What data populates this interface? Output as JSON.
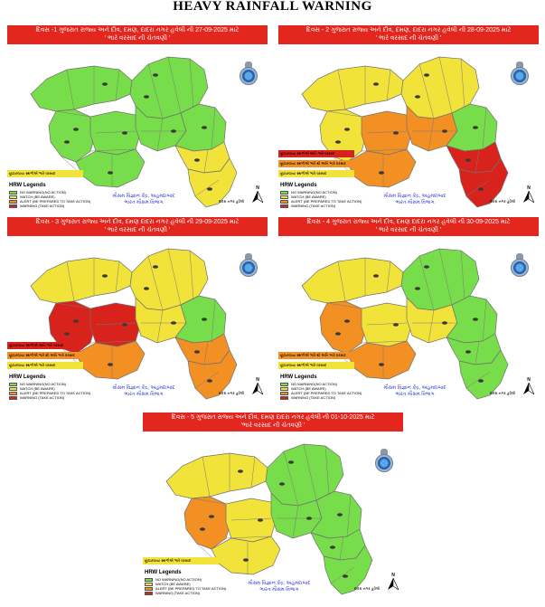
{
  "title": "HEAVY RAINFALL WARNING",
  "colors": {
    "no_warning": "#77dd4a",
    "watch": "#f2e33a",
    "alert": "#f29024",
    "warning": "#d8231c",
    "banner": "#e4271e",
    "imd_text": "#2e3bd3"
  },
  "panels": [
    {
      "day_line": "દિવસ -1 ગુજરાત રાજ્ય અને દીવ, દમણ, દાદરા નગર હવેલી ની 27-09-2025 માટે",
      "subtitle": "' ભારે વરસાદ ની ચેતવણી '",
      "regions": [
        {
          "zone": "Kutch",
          "level": "no_warning"
        },
        {
          "zone": "North Gujarat",
          "level": "no_warning"
        },
        {
          "zone": "Saurashtra West",
          "level": "no_warning"
        },
        {
          "zone": "Saurashtra Central",
          "level": "no_warning"
        },
        {
          "zone": "Saurashtra South",
          "level": "no_warning"
        },
        {
          "zone": "Central Gujarat",
          "level": "no_warning"
        },
        {
          "zone": "East Gujarat",
          "level": "no_warning"
        },
        {
          "zone": "South Gujarat Upper",
          "level": "watch"
        },
        {
          "zone": "South Gujarat Lower",
          "level": "watch"
        }
      ],
      "notes": [
        {
          "text": "છૂટાછવાયા સ્થળોએ ભારે વરસાદ",
          "level": "watch"
        }
      ],
      "imd_line1": "મૌસમ વિજ્ઞાન કેંદ્ર, અહમદાબાદ",
      "imd_line2": "ભારત મૌસમ વિભાગ",
      "island_label": "દાદરા નગર હવેલી"
    },
    {
      "day_line": "દિવસ - 2 ગુજરાત રાજ્ય અને દીવ, દમણ, દાદરા નગર હવેલી ની 28-09-2025 માટે",
      "subtitle": "' ભારે વરસાદ ની ચેતવણી '",
      "regions": [
        {
          "zone": "Kutch",
          "level": "watch"
        },
        {
          "zone": "North Gujarat",
          "level": "watch"
        },
        {
          "zone": "Saurashtra West",
          "level": "watch"
        },
        {
          "zone": "Saurashtra Central",
          "level": "alert"
        },
        {
          "zone": "Saurashtra South",
          "level": "alert"
        },
        {
          "zone": "Central Gujarat",
          "level": "alert"
        },
        {
          "zone": "East Gujarat",
          "level": "no_warning"
        },
        {
          "zone": "South Gujarat Upper",
          "level": "warning"
        },
        {
          "zone": "South Gujarat Lower",
          "level": "warning"
        }
      ],
      "notes": [
        {
          "text": "છૂટાછવાયા સ્થળોએ અતિ ભારે વરસાદ",
          "level": "warning"
        },
        {
          "text": "છૂટાછવાયા સ્થળોએ ભારે થી અતિ ભારે વરસાદ",
          "level": "alert"
        },
        {
          "text": "છૂટાછવાયા સ્થળોએ ભારે વરસાદ",
          "level": "watch"
        }
      ],
      "imd_line1": "મૌસમ વિજ્ઞાન કેંદ્ર, અહમદાબાદ",
      "imd_line2": "ભારત મૌસમ વિભાગ",
      "island_label": "દાદરા નગર હવેલી"
    },
    {
      "day_line": "દિવસ - 3 ગુજરાત રાજ્ય અને દીવ, દમણ દાદરા નગર હવેલી ની 29-09-2025 માટે",
      "subtitle": "' ભારે વરસાદ ની ચેતવણી '",
      "regions": [
        {
          "zone": "Kutch",
          "level": "watch"
        },
        {
          "zone": "North Gujarat",
          "level": "watch"
        },
        {
          "zone": "Saurashtra West",
          "level": "warning"
        },
        {
          "zone": "Saurashtra Central",
          "level": "warning"
        },
        {
          "zone": "Saurashtra South",
          "level": "alert"
        },
        {
          "zone": "Central Gujarat",
          "level": "watch"
        },
        {
          "zone": "East Gujarat",
          "level": "no_warning"
        },
        {
          "zone": "South Gujarat Upper",
          "level": "alert"
        },
        {
          "zone": "South Gujarat Lower",
          "level": "alert"
        }
      ],
      "notes": [
        {
          "text": "છૂટાછવાયા સ્થળોએ અતિ ભારે વરસાદ",
          "level": "warning"
        },
        {
          "text": "છૂટાછવાયા સ્થળોએ ભારે થી અતિ ભારે વરસાદ",
          "level": "alert"
        },
        {
          "text": "છૂટાછવાયા સ્થળોએ ભારે વરસાદ",
          "level": "watch"
        }
      ],
      "imd_line1": "મૌસમ વિજ્ઞાન કેંદ્ર, અહમદાબાદ",
      "imd_line2": "ભારત મૌસમ વિભાગ",
      "island_label": "દાદરા નગર હવેલી"
    },
    {
      "day_line": "દિવસ - 4 ગુજરાત રાજ્ય અને દીવ, દમણ દાદરા નગર હવેલી ની 30-09-2025 માટે",
      "subtitle": "' ભારે વરસાદ ની ચેતવણી '",
      "regions": [
        {
          "zone": "Kutch",
          "level": "watch"
        },
        {
          "zone": "North Gujarat",
          "level": "no_warning"
        },
        {
          "zone": "Saurashtra West",
          "level": "alert"
        },
        {
          "zone": "Saurashtra Central",
          "level": "watch"
        },
        {
          "zone": "Saurashtra South",
          "level": "alert"
        },
        {
          "zone": "Central Gujarat",
          "level": "watch"
        },
        {
          "zone": "East Gujarat",
          "level": "no_warning"
        },
        {
          "zone": "South Gujarat Upper",
          "level": "no_warning"
        },
        {
          "zone": "South Gujarat Lower",
          "level": "no_warning"
        }
      ],
      "notes": [
        {
          "text": "છૂટાછવાયા સ્થળોએ ભારે થી અતિ ભારે વરસાદ",
          "level": "alert"
        },
        {
          "text": "છૂટાછવાયા સ્થળોએ ભારે વરસાદ",
          "level": "watch"
        }
      ],
      "imd_line1": "મૌસમ વિજ્ઞાન કેંદ્ર, અહમદાબાદ",
      "imd_line2": "ભારત મૌસમ વિભાગ",
      "island_label": "દાદરા નગર હવેલી"
    },
    {
      "day_line": "દિવસ - 5 ગુજરાત રાજ્ય અને દીવ, દમણ દાદરા નગર હવેલી ની 01-10-2025 માટે",
      "subtitle": "'ભારે વરસાદ ની ચેતવણી '",
      "regions": [
        {
          "zone": "Kutch",
          "level": "watch"
        },
        {
          "zone": "North Gujarat",
          "level": "no_warning"
        },
        {
          "zone": "Saurashtra West",
          "level": "alert"
        },
        {
          "zone": "Saurashtra Central",
          "level": "watch"
        },
        {
          "zone": "Saurashtra South",
          "level": "watch"
        },
        {
          "zone": "Central Gujarat",
          "level": "no_warning"
        },
        {
          "zone": "East Gujarat",
          "level": "no_warning"
        },
        {
          "zone": "South Gujarat Upper",
          "level": "no_warning"
        },
        {
          "zone": "South Gujarat Lower",
          "level": "no_warning"
        }
      ],
      "notes": [
        {
          "text": "છૂટાછવાયા સ્થળોએ ભારે વરસાદ",
          "level": "watch"
        }
      ],
      "imd_line1": "મૌસમ વિજ્ઞાન કેંદ્ર, અહમદાબાદ",
      "imd_line2": "ભારત મૌસમ વિભાગ",
      "island_label": "દાદરા નગર હવેલી"
    }
  ],
  "legend": {
    "title": "HRW Legends",
    "items": [
      {
        "label": "NO WARNING(NO ACTION)",
        "level": "no_warning"
      },
      {
        "label": "WATCH (BE AWARE)",
        "level": "watch"
      },
      {
        "label": "ALERT (BE PREPARED TO TAKE ACTION)",
        "level": "alert"
      },
      {
        "label": "WARNING (TAKE ACTION)",
        "level": "warning"
      }
    ]
  },
  "north_arrow": "N"
}
